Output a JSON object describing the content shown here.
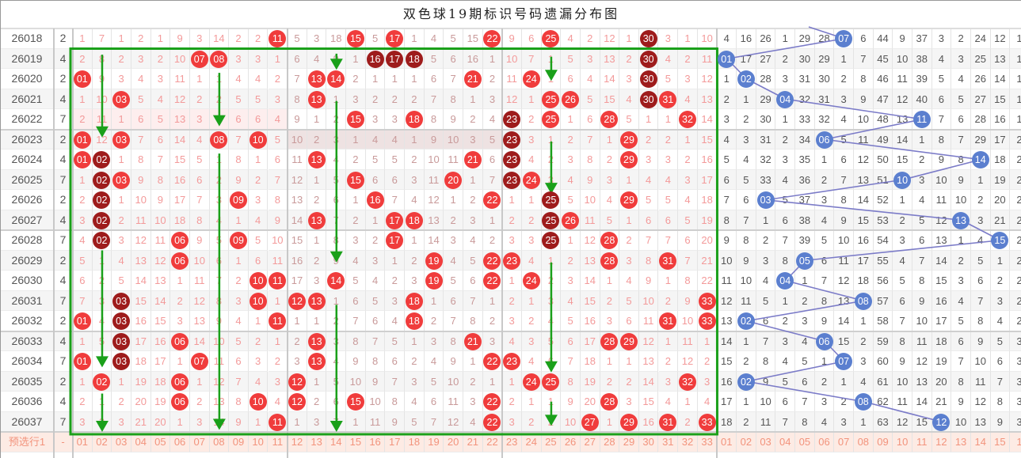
{
  "title": "双色球19期标识号码遗漏分布图",
  "colors": {
    "red_ball": "#f03c3c",
    "dark_ball": "#9e1c1c",
    "blue_ball": "#5b7fcf",
    "marker_box": "#1aa01a",
    "blue_line": "#7b7bc8"
  },
  "rows": [
    {
      "period": "26018",
      "c2": "2",
      "hits": [
        11,
        15,
        17,
        22,
        25,
        30
      ],
      "dark": [
        30
      ],
      "blue_hit": 7,
      "red": [
        "1",
        "7",
        "1",
        "2",
        "1",
        "9",
        "3",
        "14",
        "2",
        "2",
        "11",
        "5",
        "3",
        "18",
        "15",
        "5",
        "17",
        "1",
        "4",
        "5",
        "15",
        "22",
        "9",
        "6",
        "25",
        "4",
        "2",
        "12",
        "1",
        "30",
        "3",
        "1",
        "10"
      ],
      "blue": [
        "4",
        "16",
        "26",
        "1",
        "29",
        "28",
        "07",
        "6",
        "44",
        "9",
        "37",
        "3",
        "2",
        "24",
        "12",
        "1"
      ]
    },
    {
      "period": "26019",
      "c2": "4",
      "hits": [
        7,
        8,
        16,
        17,
        18,
        30
      ],
      "dark": [
        16,
        17,
        18,
        30
      ],
      "blue_hit": 1,
      "red": [
        "2",
        "8",
        "2",
        "3",
        "2",
        "10",
        "07",
        "08",
        "3",
        "3",
        "1",
        "6",
        "4",
        "9",
        "1",
        "16",
        "17",
        "18",
        "5",
        "6",
        "16",
        "1",
        "10",
        "7",
        "1",
        "5",
        "3",
        "13",
        "2",
        "30",
        "4",
        "2",
        "11"
      ],
      "blue": [
        "01",
        "17",
        "27",
        "2",
        "30",
        "29",
        "1",
        "7",
        "45",
        "10",
        "38",
        "4",
        "3",
        "25",
        "13",
        "1"
      ]
    },
    {
      "period": "26020",
      "c2": "2",
      "hits": [
        1,
        13,
        14,
        21,
        24,
        30
      ],
      "dark": [
        30
      ],
      "blue_hit": 2,
      "red": [
        "01",
        "9",
        "3",
        "4",
        "3",
        "11",
        "1",
        "1",
        "4",
        "4",
        "2",
        "7",
        "13",
        "14",
        "2",
        "1",
        "1",
        "1",
        "6",
        "7",
        "21",
        "2",
        "11",
        "24",
        "1",
        "6",
        "4",
        "14",
        "3",
        "30",
        "5",
        "3",
        "12"
      ],
      "blue": [
        "1",
        "02",
        "28",
        "3",
        "31",
        "30",
        "2",
        "8",
        "46",
        "11",
        "39",
        "5",
        "4",
        "26",
        "14",
        "1"
      ]
    },
    {
      "period": "26021",
      "c2": "4",
      "hits": [
        3,
        13,
        25,
        26,
        30,
        31
      ],
      "dark": [
        30
      ],
      "blue_hit": 4,
      "red": [
        "1",
        "10",
        "03",
        "5",
        "4",
        "12",
        "2",
        "2",
        "5",
        "5",
        "3",
        "8",
        "13",
        "1",
        "3",
        "2",
        "2",
        "2",
        "7",
        "8",
        "1",
        "3",
        "12",
        "1",
        "25",
        "26",
        "5",
        "15",
        "4",
        "30",
        "31",
        "4",
        "13"
      ],
      "blue": [
        "2",
        "1",
        "29",
        "04",
        "32",
        "31",
        "3",
        "9",
        "47",
        "12",
        "40",
        "6",
        "5",
        "27",
        "15",
        "1"
      ]
    },
    {
      "period": "26022",
      "c2": "7",
      "hits": [
        15,
        18,
        23,
        25,
        28,
        32
      ],
      "dark": [
        23
      ],
      "blue_hit": 11,
      "red": [
        "2",
        "11",
        "1",
        "6",
        "5",
        "13",
        "3",
        "3",
        "6",
        "6",
        "4",
        "9",
        "1",
        "2",
        "15",
        "3",
        "3",
        "18",
        "8",
        "9",
        "2",
        "4",
        "23",
        "2",
        "25",
        "1",
        "6",
        "28",
        "5",
        "1",
        "1",
        "32",
        "14"
      ],
      "blue": [
        "3",
        "2",
        "30",
        "1",
        "33",
        "32",
        "4",
        "10",
        "48",
        "13",
        "11",
        "7",
        "6",
        "28",
        "16",
        "1"
      ]
    },
    {
      "period": "26023",
      "c2": "2",
      "hits": [
        1,
        3,
        8,
        10,
        23,
        29
      ],
      "dark": [
        23
      ],
      "blue_hit": 6,
      "red": [
        "01",
        "12",
        "03",
        "7",
        "6",
        "14",
        "4",
        "08",
        "7",
        "10",
        "5",
        "10",
        "2",
        "3",
        "1",
        "4",
        "4",
        "1",
        "9",
        "10",
        "3",
        "5",
        "23",
        "3",
        "1",
        "2",
        "7",
        "1",
        "29",
        "2",
        "2",
        "1",
        "15"
      ],
      "blue": [
        "4",
        "3",
        "31",
        "2",
        "34",
        "06",
        "5",
        "11",
        "49",
        "14",
        "1",
        "8",
        "7",
        "29",
        "17",
        "2"
      ]
    },
    {
      "period": "26024",
      "c2": "4",
      "hits": [
        1,
        2,
        13,
        21,
        23,
        29
      ],
      "dark": [
        2,
        23
      ],
      "blue_hit": 14,
      "red": [
        "01",
        "02",
        "1",
        "8",
        "7",
        "15",
        "5",
        "1",
        "8",
        "1",
        "6",
        "11",
        "13",
        "4",
        "2",
        "5",
        "5",
        "2",
        "10",
        "11",
        "21",
        "6",
        "23",
        "4",
        "2",
        "3",
        "8",
        "2",
        "29",
        "3",
        "3",
        "2",
        "16"
      ],
      "blue": [
        "5",
        "4",
        "32",
        "3",
        "35",
        "1",
        "6",
        "12",
        "50",
        "15",
        "2",
        "9",
        "8",
        "14",
        "18",
        "2"
      ]
    },
    {
      "period": "26025",
      "c2": "7",
      "hits": [
        2,
        3,
        15,
        20,
        23,
        24
      ],
      "dark": [
        2,
        23
      ],
      "blue_hit": 10,
      "red": [
        "1",
        "02",
        "03",
        "9",
        "8",
        "16",
        "6",
        "2",
        "9",
        "2",
        "7",
        "12",
        "1",
        "5",
        "15",
        "6",
        "6",
        "3",
        "11",
        "20",
        "1",
        "7",
        "23",
        "24",
        "3",
        "4",
        "9",
        "3",
        "1",
        "4",
        "4",
        "3",
        "17"
      ],
      "blue": [
        "6",
        "5",
        "33",
        "4",
        "36",
        "2",
        "7",
        "13",
        "51",
        "10",
        "3",
        "10",
        "9",
        "1",
        "19",
        "2"
      ]
    },
    {
      "period": "26026",
      "c2": "2",
      "hits": [
        2,
        9,
        16,
        22,
        25,
        29
      ],
      "dark": [
        2,
        25
      ],
      "blue_hit": 3,
      "red": [
        "2",
        "02",
        "1",
        "10",
        "9",
        "17",
        "7",
        "3",
        "09",
        "3",
        "8",
        "13",
        "2",
        "6",
        "1",
        "16",
        "7",
        "4",
        "12",
        "1",
        "2",
        "22",
        "1",
        "1",
        "25",
        "5",
        "10",
        "4",
        "29",
        "5",
        "5",
        "4",
        "18"
      ],
      "blue": [
        "7",
        "6",
        "03",
        "5",
        "37",
        "3",
        "8",
        "14",
        "52",
        "1",
        "4",
        "11",
        "10",
        "2",
        "20",
        "2"
      ]
    },
    {
      "period": "26027",
      "c2": "4",
      "hits": [
        2,
        13,
        17,
        18,
        25,
        26
      ],
      "dark": [
        2,
        25
      ],
      "blue_hit": 13,
      "red": [
        "3",
        "02",
        "2",
        "11",
        "10",
        "18",
        "8",
        "4",
        "1",
        "4",
        "9",
        "14",
        "13",
        "7",
        "2",
        "1",
        "17",
        "18",
        "13",
        "2",
        "3",
        "1",
        "2",
        "2",
        "25",
        "26",
        "11",
        "5",
        "1",
        "6",
        "6",
        "5",
        "19"
      ],
      "blue": [
        "8",
        "7",
        "1",
        "6",
        "38",
        "4",
        "9",
        "15",
        "53",
        "2",
        "5",
        "12",
        "13",
        "3",
        "21",
        "2"
      ]
    },
    {
      "period": "26028",
      "c2": "7",
      "hits": [
        2,
        6,
        9,
        17,
        25,
        28
      ],
      "dark": [
        2,
        25
      ],
      "blue_hit": 15,
      "red": [
        "4",
        "02",
        "3",
        "12",
        "11",
        "06",
        "9",
        "5",
        "09",
        "5",
        "10",
        "15",
        "1",
        "8",
        "3",
        "2",
        "17",
        "1",
        "14",
        "3",
        "4",
        "2",
        "3",
        "3",
        "25",
        "1",
        "12",
        "28",
        "2",
        "7",
        "7",
        "6",
        "20"
      ],
      "blue": [
        "9",
        "8",
        "2",
        "7",
        "39",
        "5",
        "10",
        "16",
        "54",
        "3",
        "6",
        "13",
        "1",
        "4",
        "15",
        "2"
      ]
    },
    {
      "period": "26029",
      "c2": "2",
      "hits": [
        6,
        19,
        22,
        23,
        28,
        31
      ],
      "dark": [],
      "blue_hit": 5,
      "red": [
        "5",
        "1",
        "4",
        "13",
        "12",
        "06",
        "10",
        "6",
        "1",
        "6",
        "11",
        "16",
        "2",
        "9",
        "4",
        "3",
        "1",
        "2",
        "19",
        "4",
        "5",
        "22",
        "23",
        "4",
        "1",
        "2",
        "13",
        "28",
        "3",
        "8",
        "31",
        "7",
        "21"
      ],
      "blue": [
        "10",
        "9",
        "3",
        "8",
        "05",
        "6",
        "11",
        "17",
        "55",
        "4",
        "7",
        "14",
        "2",
        "5",
        "1",
        "2"
      ]
    },
    {
      "period": "26030",
      "c2": "4",
      "hits": [
        10,
        11,
        14,
        19,
        22,
        24
      ],
      "dark": [],
      "blue_hit": 4,
      "red": [
        "6",
        "2",
        "5",
        "14",
        "13",
        "1",
        "11",
        "7",
        "2",
        "10",
        "11",
        "17",
        "3",
        "14",
        "5",
        "4",
        "2",
        "3",
        "19",
        "5",
        "6",
        "22",
        "1",
        "24",
        "2",
        "3",
        "14",
        "1",
        "4",
        "9",
        "1",
        "8",
        "22"
      ],
      "blue": [
        "11",
        "10",
        "4",
        "04",
        "1",
        "7",
        "12",
        "18",
        "56",
        "5",
        "8",
        "15",
        "3",
        "6",
        "2",
        "2"
      ]
    },
    {
      "period": "26031",
      "c2": "7",
      "hits": [
        3,
        10,
        12,
        13,
        18,
        33
      ],
      "dark": [
        3
      ],
      "blue_hit": 8,
      "red": [
        "7",
        "3",
        "03",
        "15",
        "14",
        "2",
        "12",
        "8",
        "3",
        "10",
        "1",
        "12",
        "13",
        "1",
        "6",
        "5",
        "3",
        "18",
        "1",
        "6",
        "7",
        "1",
        "2",
        "1",
        "3",
        "4",
        "15",
        "2",
        "5",
        "10",
        "2",
        "9",
        "33"
      ],
      "blue": [
        "12",
        "11",
        "5",
        "1",
        "2",
        "8",
        "13",
        "08",
        "57",
        "6",
        "9",
        "16",
        "4",
        "7",
        "3",
        "2"
      ]
    },
    {
      "period": "26032",
      "c2": "2",
      "hits": [
        1,
        3,
        11,
        18,
        31,
        33
      ],
      "dark": [
        3
      ],
      "blue_hit": 2,
      "red": [
        "01",
        "4",
        "03",
        "16",
        "15",
        "3",
        "13",
        "9",
        "4",
        "1",
        "11",
        "1",
        "1",
        "2",
        "7",
        "6",
        "4",
        "18",
        "2",
        "7",
        "8",
        "2",
        "3",
        "2",
        "4",
        "5",
        "16",
        "3",
        "6",
        "11",
        "31",
        "10",
        "33"
      ],
      "blue": [
        "13",
        "02",
        "6",
        "2",
        "3",
        "9",
        "14",
        "1",
        "58",
        "7",
        "10",
        "17",
        "5",
        "8",
        "4",
        "2"
      ]
    },
    {
      "period": "26033",
      "c2": "4",
      "hits": [
        3,
        6,
        13,
        21,
        28,
        29
      ],
      "dark": [
        3
      ],
      "blue_hit": 6,
      "red": [
        "1",
        "5",
        "03",
        "17",
        "16",
        "06",
        "14",
        "10",
        "5",
        "2",
        "1",
        "2",
        "13",
        "3",
        "8",
        "7",
        "5",
        "1",
        "3",
        "8",
        "21",
        "3",
        "4",
        "3",
        "5",
        "6",
        "17",
        "28",
        "29",
        "12",
        "1",
        "11",
        "1"
      ],
      "blue": [
        "14",
        "1",
        "7",
        "3",
        "4",
        "06",
        "15",
        "2",
        "59",
        "8",
        "11",
        "18",
        "6",
        "9",
        "5",
        "3"
      ]
    },
    {
      "period": "26034",
      "c2": "7",
      "hits": [
        1,
        3,
        7,
        13,
        22,
        23
      ],
      "dark": [
        3
      ],
      "blue_hit": 7,
      "red": [
        "01",
        "6",
        "03",
        "18",
        "17",
        "1",
        "07",
        "11",
        "6",
        "3",
        "2",
        "3",
        "13",
        "4",
        "9",
        "8",
        "6",
        "2",
        "4",
        "9",
        "1",
        "22",
        "23",
        "4",
        "6",
        "7",
        "18",
        "1",
        "1",
        "13",
        "2",
        "12",
        "2"
      ],
      "blue": [
        "15",
        "2",
        "8",
        "4",
        "5",
        "1",
        "07",
        "3",
        "60",
        "9",
        "12",
        "19",
        "7",
        "10",
        "6",
        "3"
      ]
    },
    {
      "period": "26035",
      "c2": "2",
      "hits": [
        2,
        6,
        12,
        24,
        25,
        32
      ],
      "dark": [],
      "blue_hit": 2,
      "red": [
        "1",
        "02",
        "1",
        "19",
        "18",
        "06",
        "1",
        "12",
        "7",
        "4",
        "3",
        "12",
        "1",
        "5",
        "10",
        "9",
        "7",
        "3",
        "5",
        "10",
        "2",
        "1",
        "1",
        "24",
        "25",
        "8",
        "19",
        "2",
        "2",
        "14",
        "3",
        "32",
        "3"
      ],
      "blue": [
        "16",
        "02",
        "9",
        "5",
        "6",
        "2",
        "1",
        "4",
        "61",
        "10",
        "13",
        "20",
        "8",
        "11",
        "7",
        "3"
      ]
    },
    {
      "period": "26036",
      "c2": "4",
      "hits": [
        6,
        10,
        12,
        15,
        22,
        28
      ],
      "dark": [],
      "blue_hit": 8,
      "red": [
        "2",
        "1",
        "2",
        "20",
        "19",
        "06",
        "2",
        "13",
        "8",
        "10",
        "4",
        "12",
        "2",
        "6",
        "15",
        "10",
        "8",
        "4",
        "6",
        "11",
        "3",
        "22",
        "2",
        "1",
        "1",
        "9",
        "20",
        "28",
        "3",
        "15",
        "4",
        "1",
        "4"
      ],
      "blue": [
        "17",
        "1",
        "10",
        "6",
        "7",
        "3",
        "2",
        "08",
        "62",
        "11",
        "14",
        "21",
        "9",
        "12",
        "8",
        "3"
      ]
    },
    {
      "period": "26037",
      "c2": "7",
      "hits": [
        11,
        22,
        27,
        29,
        31,
        33
      ],
      "dark": [],
      "blue_hit": 12,
      "red": [
        "3",
        "2",
        "3",
        "21",
        "20",
        "1",
        "3",
        "14",
        "9",
        "1",
        "11",
        "1",
        "3",
        "7",
        "1",
        "11",
        "9",
        "5",
        "7",
        "12",
        "4",
        "22",
        "3",
        "2",
        "2",
        "10",
        "27",
        "1",
        "29",
        "16",
        "31",
        "2",
        "33"
      ],
      "blue": [
        "18",
        "2",
        "11",
        "7",
        "8",
        "4",
        "3",
        "1",
        "63",
        "12",
        "15",
        "12",
        "10",
        "13",
        "9",
        "3"
      ]
    }
  ],
  "footer": {
    "label": "预选行1",
    "c2": "-",
    "red": [
      "01",
      "02",
      "03",
      "04",
      "05",
      "06",
      "07",
      "08",
      "09",
      "10",
      "11",
      "12",
      "13",
      "14",
      "15",
      "16",
      "17",
      "18",
      "19",
      "20",
      "21",
      "22",
      "23",
      "24",
      "25",
      "26",
      "27",
      "28",
      "29",
      "30",
      "31",
      "32",
      "33"
    ],
    "blue": [
      "01",
      "02",
      "03",
      "04",
      "05",
      "06",
      "07",
      "08",
      "09",
      "10",
      "11",
      "12",
      "13",
      "14",
      "15",
      "1"
    ]
  }
}
